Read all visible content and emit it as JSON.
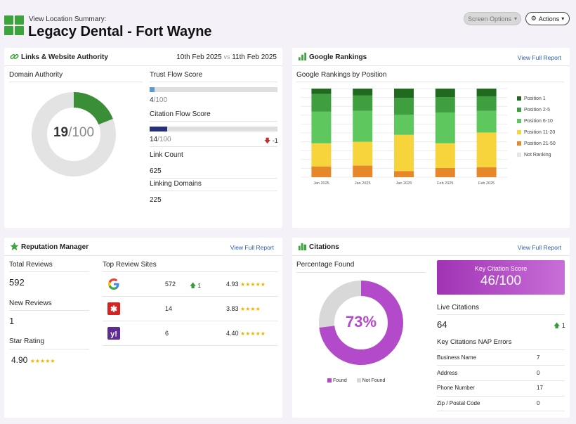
{
  "header": {
    "subtitle": "View Location Summary:",
    "title": "Legacy Dental - Fort Wayne",
    "screen_options": "Screen Options",
    "actions": "Actions"
  },
  "links": {
    "title": "Links & Website Authority",
    "date_from": "10th Feb 2025",
    "vs": "vs",
    "date_to": "11th Feb 2025",
    "domain_authority_label": "Domain Authority",
    "domain_authority_value": "19",
    "domain_authority_max": "/100",
    "domain_authority_fraction": 0.19,
    "trust_flow_label": "Trust Flow Score",
    "trust_flow_value": "4",
    "trust_flow_max": "/100",
    "trust_flow_fraction": 0.04,
    "citation_flow_label": "Citation Flow Score",
    "citation_flow_value": "14",
    "citation_flow_max": "/100",
    "citation_flow_fraction": 0.14,
    "citation_flow_change": "-1",
    "link_count_label": "Link Count",
    "link_count_value": "625",
    "linking_domains_label": "Linking Domains",
    "linking_domains_value": "225"
  },
  "rankings": {
    "title": "Google Rankings",
    "view_report": "View Full Report",
    "subtitle": "Google Rankings by Position"
  },
  "chart_data": {
    "type": "bar",
    "stacked": true,
    "categories": [
      "Jan 2025",
      "Jan 2025",
      "Jan 2025",
      "Feb 2025",
      "Feb 2025"
    ],
    "series": [
      {
        "name": "Position 21-50",
        "color": "#e8862a",
        "values": [
          14,
          15,
          8,
          12,
          13
        ]
      },
      {
        "name": "Position 11-20",
        "color": "#f7d33c",
        "values": [
          30,
          31,
          47,
          32,
          45
        ]
      },
      {
        "name": "Position 6-10",
        "color": "#5ec85e",
        "values": [
          41,
          40,
          26,
          40,
          28
        ]
      },
      {
        "name": "Position 2-5",
        "color": "#3f9f3f",
        "values": [
          23,
          20,
          22,
          20,
          19
        ]
      },
      {
        "name": "Position 1",
        "color": "#1f6a1f",
        "values": [
          7,
          9,
          12,
          11,
          10
        ]
      }
    ],
    "legend": [
      "Position 1",
      "Position 2-5",
      "Position 6-10",
      "Position 11-20",
      "Position 21-50",
      "Not Ranking"
    ],
    "legend_colors": [
      "#1f6a1f",
      "#3f9f3f",
      "#5ec85e",
      "#f7d33c",
      "#e8862a",
      "#e6e6e6"
    ],
    "legend_position": "right",
    "grid": true,
    "ylim": [
      0,
      115
    ]
  },
  "reputation": {
    "title": "Reputation Manager",
    "view_report": "View Full Report",
    "total_reviews_label": "Total Reviews",
    "total_reviews_value": "592",
    "new_reviews_label": "New Reviews",
    "new_reviews_value": "1",
    "star_rating_label": "Star Rating",
    "star_rating_value": "4.90",
    "top_sites_label": "Top Review Sites",
    "sites": [
      {
        "name": "Google",
        "count": "572",
        "change": "1",
        "rating": "4.93"
      },
      {
        "name": "Yelp",
        "count": "14",
        "change": "",
        "rating": "3.83"
      },
      {
        "name": "Yahoo",
        "count": "6",
        "change": "",
        "rating": "4.40"
      }
    ]
  },
  "citations": {
    "title": "Citations",
    "view_report": "View Full Report",
    "percentage_label": "Percentage Found",
    "percentage_value": "73%",
    "percentage_fraction": 0.73,
    "found_label": "Found",
    "not_found_label": "Not Found",
    "key_score_label": "Key Citation Score",
    "key_score_value": "46/100",
    "live_citations_label": "Live Citations",
    "live_citations_value": "64",
    "live_citations_change": "1",
    "nap_errors_label": "Key Citations NAP Errors",
    "nap_errors": [
      {
        "label": "Business Name",
        "value": "7"
      },
      {
        "label": "Address",
        "value": "0"
      },
      {
        "label": "Phone Number",
        "value": "17"
      },
      {
        "label": "Zip / Postal Code",
        "value": "0"
      }
    ]
  },
  "colors": {
    "brand_green": "#3da33d",
    "citation_purple": "#b24ac9",
    "link_blue": "#2a5caa"
  }
}
